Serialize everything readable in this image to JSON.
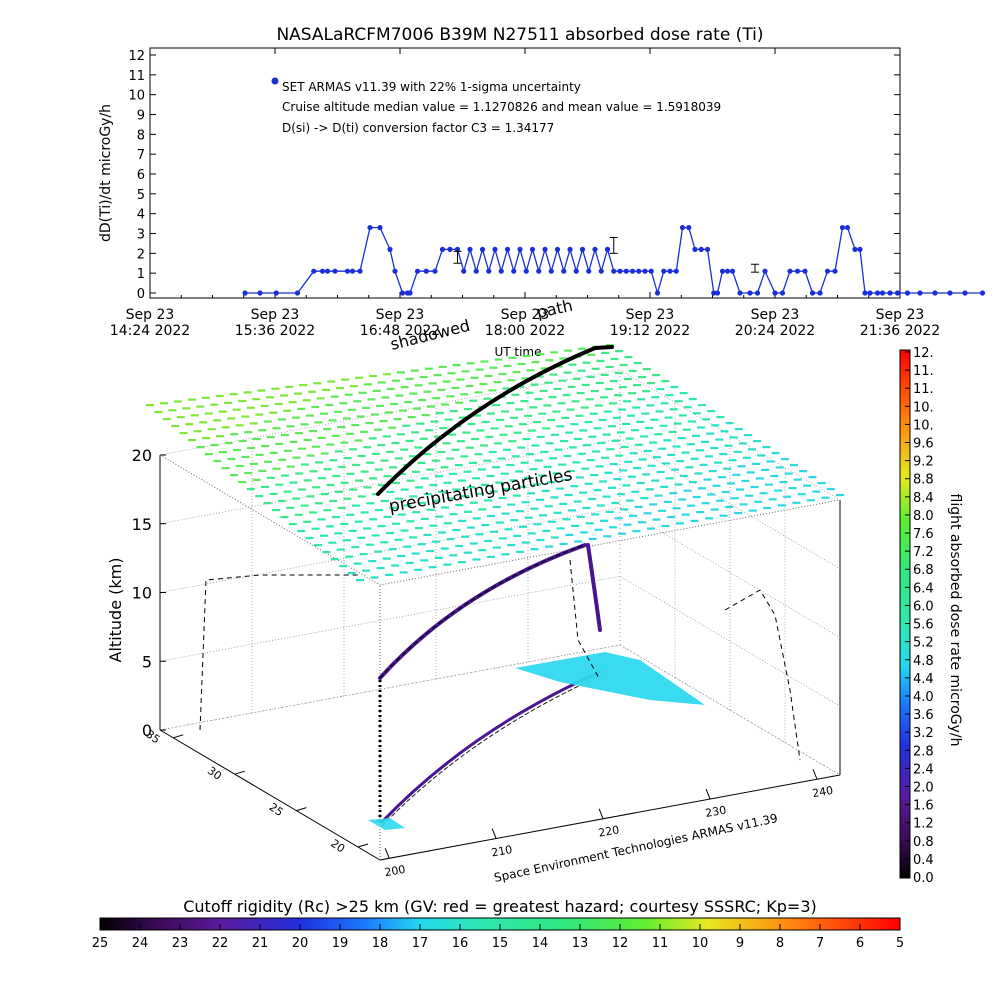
{
  "title": "NASALaRCFM7006   B39M N27511 absorbed dose rate (Ti)",
  "chart_data": [
    {
      "type": "scatter",
      "title": "NASALaRCFM7006   B39M N27511 absorbed dose rate (Ti)",
      "xlabel": "UT time",
      "ylabel": "dD(Ti)/dt microGy/h",
      "ylim": [
        0,
        12
      ],
      "yticks": [
        "0",
        "1",
        "2",
        "3",
        "4",
        "5",
        "6",
        "7",
        "8",
        "9",
        "10",
        "11",
        "12"
      ],
      "xticks": [
        {
          "top": "Sep 23",
          "bottom": "14:24 2022"
        },
        {
          "top": "Sep 23",
          "bottom": "15:36 2022"
        },
        {
          "top": "Sep 23",
          "bottom": "16:48 2022"
        },
        {
          "top": "Sep 23",
          "bottom": "18:00 2022"
        },
        {
          "top": "Sep 23",
          "bottom": "19:12 2022"
        },
        {
          "top": "Sep 23",
          "bottom": "20:24 2022"
        },
        {
          "top": "Sep 23",
          "bottom": "21:36 2022"
        }
      ],
      "annotations": [
        "SET ARMAS v11.39 with 22% 1-sigma uncertainty",
        "Cruise altitude median value = 1.1270826 and mean value = 1.5918039",
        "D(si) -> D(ti) conversion factor C3 = 1.34177"
      ],
      "series_color": "#1a2fd8",
      "series": [
        {
          "x": [
            0.0,
            0.12,
            0.25,
            0.42,
            0.55,
            0.62,
            0.66,
            0.72,
            0.82,
            0.86,
            0.92,
            1.0,
            1.08,
            1.16,
            1.2,
            1.26,
            1.3,
            1.32,
            1.38,
            1.45,
            1.52,
            1.58,
            1.64,
            1.7,
            1.75,
            1.8,
            1.85,
            1.9,
            1.95,
            2.0,
            2.05,
            2.1,
            2.15,
            2.2,
            2.25,
            2.3,
            2.35,
            2.4,
            2.45,
            2.5,
            2.55,
            2.6,
            2.65,
            2.7,
            2.75,
            2.8,
            2.85,
            2.9,
            2.95,
            3.0,
            3.05,
            3.1,
            3.15,
            3.2,
            3.25,
            3.3,
            3.35,
            3.4,
            3.45,
            3.5,
            3.55,
            3.6,
            3.65,
            3.7,
            3.75,
            3.78,
            3.82,
            3.86,
            3.9,
            3.96,
            4.04,
            4.1,
            4.16,
            4.24,
            4.3,
            4.36,
            4.42,
            4.48,
            4.54,
            4.6,
            4.66,
            4.72,
            4.78,
            4.82,
            4.88,
            4.92,
            4.96,
            5.0,
            5.06,
            5.1,
            5.16,
            5.22,
            5.3,
            5.4,
            5.52,
            5.64,
            5.76,
            5.9
          ],
          "y": [
            0,
            0,
            0,
            0,
            1.1,
            1.1,
            1.1,
            1.1,
            1.1,
            1.1,
            1.1,
            3.3,
            3.3,
            2.2,
            1.1,
            0,
            0,
            0,
            1.1,
            1.1,
            1.1,
            2.2,
            2.2,
            2.2,
            1.1,
            2.2,
            1.1,
            2.2,
            1.1,
            2.2,
            1.1,
            2.2,
            1.1,
            2.2,
            1.1,
            2.2,
            1.1,
            2.2,
            1.1,
            2.2,
            1.1,
            2.2,
            1.1,
            2.2,
            1.1,
            2.2,
            1.1,
            2.2,
            1.1,
            1.1,
            1.1,
            1.1,
            1.1,
            1.1,
            1.1,
            0,
            1.1,
            1.1,
            1.1,
            3.3,
            3.3,
            2.2,
            2.2,
            2.2,
            0,
            0,
            1.1,
            1.1,
            1.1,
            0,
            0,
            0,
            1.1,
            0,
            0,
            1.1,
            1.1,
            1.1,
            0,
            0,
            1.1,
            1.1,
            3.3,
            3.3,
            2.2,
            2.2,
            0,
            0,
            0,
            0,
            0,
            0,
            0,
            0,
            0,
            0,
            0,
            0
          ]
        }
      ],
      "error_bars": [
        {
          "x": 1.7,
          "y": 1.8,
          "lo": 1.5,
          "hi": 2.1
        },
        {
          "x": 2.95,
          "y": 2.4,
          "lo": 2.0,
          "hi": 2.8
        },
        {
          "x": 4.08,
          "y": 1.25,
          "lo": 1.05,
          "hi": 1.45
        }
      ]
    },
    {
      "type": "3d-surface",
      "zlabel": "Altitude (km)",
      "zticks": [
        "0",
        "5",
        "10",
        "15",
        "20"
      ],
      "xticks": [
        "200",
        "210",
        "220",
        "230",
        "240"
      ],
      "yticks": [
        "20",
        "25",
        "30",
        "35"
      ],
      "labels": [
        "shadowed",
        "path",
        "precipitating particles",
        "Space Environment Technologies ARMAS v11.39"
      ],
      "colorbar": {
        "label": "flight absorbed dose rate microGy/h",
        "ticks": [
          "0.0",
          "0.4",
          "0.8",
          "1.2",
          "1.6",
          "2.0",
          "2.4",
          "2.8",
          "3.2",
          "3.6",
          "4.0",
          "4.4",
          "4.8",
          "5.2",
          "5.6",
          "6.0",
          "6.4",
          "6.8",
          "7.2",
          "7.6",
          "8.0",
          "8.4",
          "8.8",
          "9.2",
          "9.6",
          "10.",
          "10.",
          "11.",
          "11.",
          "12."
        ]
      }
    },
    {
      "type": "colorbar",
      "title": "Cutoff rigidity (Rc) >25 km (GV: red = greatest hazard; courtesy SSSRC; Kp=3)",
      "ticks": [
        "25",
        "24",
        "23",
        "22",
        "21",
        "20",
        "19",
        "18",
        "17",
        "16",
        "15",
        "14",
        "13",
        "12",
        "11",
        "10",
        "9",
        "8",
        "7",
        "6",
        "5"
      ]
    }
  ]
}
